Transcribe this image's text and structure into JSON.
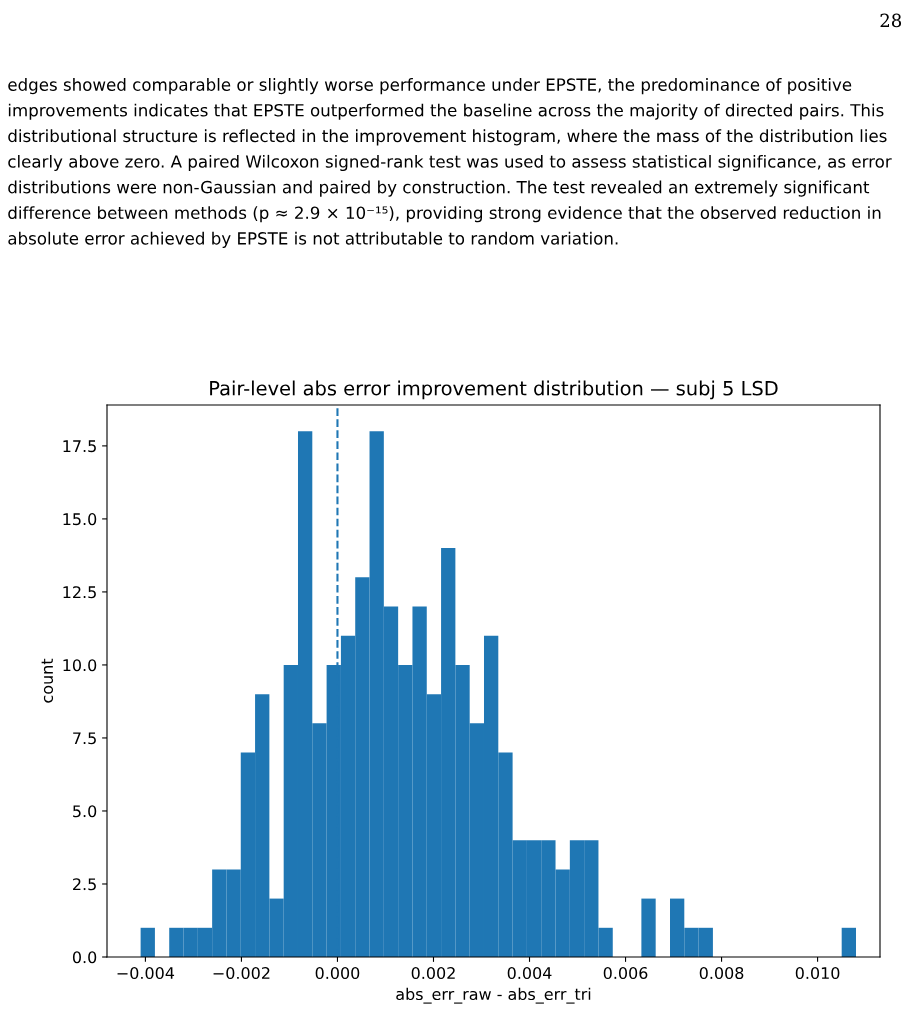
{
  "chart_data": {
    "type": "histogram",
    "title": "Pair-level abs error improvement distribution — subj 5 LSD",
    "xlabel": "abs_err_raw - abs_err_tri",
    "ylabel": "count",
    "annotations": [
      "28",
      "edges showed comparable or slightly worse performance under EPSTE, the predominance of positive improvements indicates that EPSTE outperformed the baseline across the majority of directed pairs. This distributional structure is reflected in the improvement histogram, where the mass of the distribution lies clearly above zero. A paired Wilcoxon signed-rank test was used to assess statistical significance, as error distributions were non-Gaussian and paired by construction. The test revealed an extremely significant difference between methods (p ≈ 2.9 × 10⁻¹⁵), providing strong evidence that the observed reduction in absolute error achieved by EPSTE is not attributable to random variation."
    ],
    "bins": [
      -0.0041,
      -0.003802,
      -0.003504,
      -0.003206,
      -0.002908,
      -0.00261,
      -0.002312,
      -0.002014,
      -0.001716,
      -0.001418,
      -0.00112,
      -0.000822,
      -0.000524,
      -0.000226,
      7.2e-05,
      0.00037,
      0.000668,
      0.000966,
      0.001264,
      0.001562,
      0.00186,
      0.002158,
      0.002456,
      0.002754,
      0.003052,
      0.00335,
      0.003648,
      0.003946,
      0.004244,
      0.004542,
      0.00484,
      0.005138,
      0.005436,
      0.005734,
      0.006032,
      0.00633,
      0.006628,
      0.006926,
      0.007224,
      0.007522,
      0.00782,
      0.008118,
      0.008416,
      0.008714,
      0.009012,
      0.00931,
      0.009608,
      0.009906,
      0.010204,
      0.010502,
      0.0108
    ],
    "values": [
      1,
      0,
      1,
      1,
      1,
      3,
      3,
      7,
      9,
      2,
      10,
      18,
      8,
      10,
      11,
      13,
      18,
      12,
      10,
      12,
      9,
      14,
      10,
      8,
      11,
      7,
      4,
      4,
      4,
      3,
      4,
      4,
      1,
      0,
      0,
      2,
      0,
      2,
      1,
      1,
      0,
      0,
      0,
      0,
      0,
      0,
      0,
      0,
      0,
      1
    ],
    "color": "#1f77b4",
    "xlim": [
      -0.0048,
      0.0113
    ],
    "xticks": [
      {
        "value": -0.004,
        "label": "−0.004"
      },
      {
        "value": -0.002,
        "label": "−0.002"
      },
      {
        "value": 0,
        "label": "0.000"
      },
      {
        "value": 0.002,
        "label": "0.002"
      },
      {
        "value": 0.004,
        "label": "0.004"
      },
      {
        "value": 0.006,
        "label": "0.006"
      },
      {
        "value": 0.008,
        "label": "0.008"
      },
      {
        "value": 0.01,
        "label": "0.010"
      }
    ],
    "ylim": [
      0,
      18.9
    ],
    "yticks": [
      {
        "value": 0,
        "label": "0.0"
      },
      {
        "value": 2.5,
        "label": "2.5"
      },
      {
        "value": 5,
        "label": "5.0"
      },
      {
        "value": 7.5,
        "label": "7.5"
      },
      {
        "value": 10,
        "label": "10.0"
      },
      {
        "value": 12.5,
        "label": "12.5"
      },
      {
        "value": 15,
        "label": "15.0"
      },
      {
        "value": 17.5,
        "label": "17.5"
      }
    ],
    "ref_lines": [
      {
        "axis": "x",
        "value": 0,
        "color": "#1f77b4",
        "line_style": "dashed"
      }
    ],
    "grid": false,
    "legend": false
  }
}
